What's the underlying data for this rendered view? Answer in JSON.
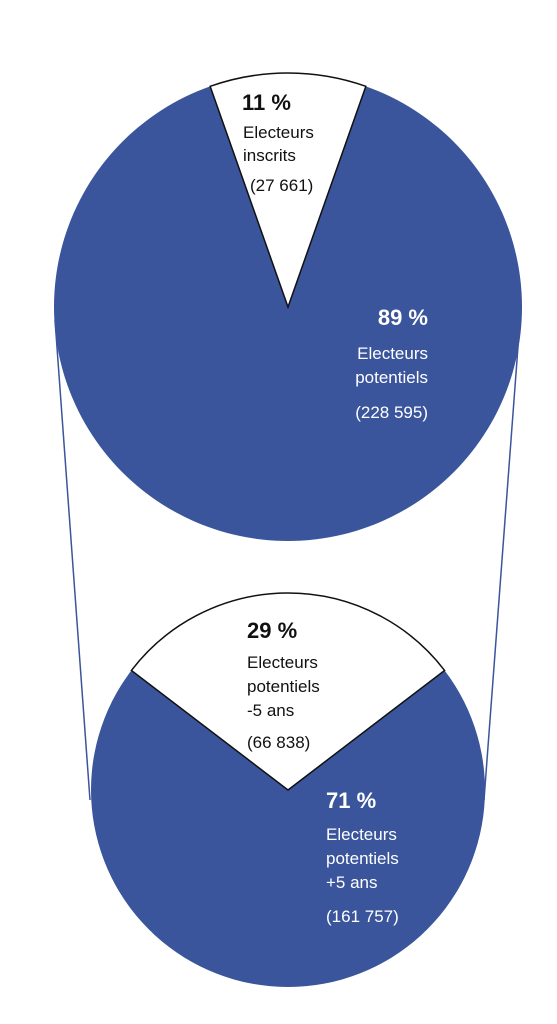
{
  "colors": {
    "main": "#3a559c",
    "secondary": "#ffffff",
    "stroke": "#111111",
    "connector": "#3a559c"
  },
  "chart_data": [
    {
      "type": "pie",
      "slices": [
        {
          "label_lines": [
            "Electeurs",
            "inscrits"
          ],
          "pct_text": "11 %",
          "count_text": "(27 661)",
          "value": 27661,
          "percent": 11
        },
        {
          "label_lines": [
            "Electeurs",
            "potentiels"
          ],
          "pct_text": "89 %",
          "count_text": "(228 595)",
          "value": 228595,
          "percent": 89
        }
      ]
    },
    {
      "type": "pie",
      "slices": [
        {
          "label_lines": [
            "Electeurs",
            "potentiels",
            "-5 ans"
          ],
          "pct_text": "29 %",
          "count_text": "(66 838)",
          "value": 66838,
          "percent": 29
        },
        {
          "label_lines": [
            "Electeurs",
            "potentiels",
            "+5 ans"
          ],
          "pct_text": "71 %",
          "count_text": "(161 757)",
          "value": 161757,
          "percent": 71
        }
      ]
    }
  ]
}
